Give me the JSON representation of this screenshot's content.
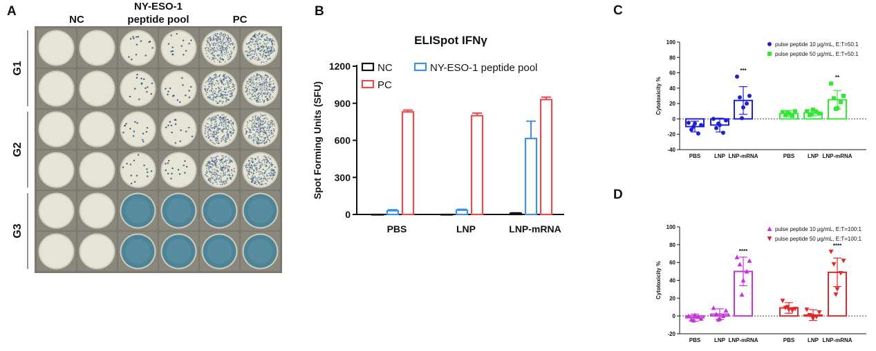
{
  "panels": {
    "a": "A",
    "b": "B",
    "c": "C",
    "d": "D"
  },
  "panel_a": {
    "columns": [
      "NC",
      "NY-ESO-1\npeptide pool",
      "PC"
    ],
    "rows": [
      "G1",
      "G2",
      "G3"
    ],
    "wells": [
      [
        "blank",
        "blank",
        "sparse",
        "sparse",
        "dense",
        "dense"
      ],
      [
        "blank",
        "blank",
        "sparse",
        "sparse",
        "dense",
        "dense"
      ],
      [
        "blank",
        "blank",
        "sparse",
        "sparse",
        "dense",
        "dense"
      ],
      [
        "blank",
        "blank",
        "sparse",
        "sparse",
        "dense",
        "dense"
      ],
      [
        "blank",
        "blank",
        "full",
        "full",
        "full",
        "full"
      ],
      [
        "blank",
        "blank",
        "full",
        "full",
        "full",
        "full"
      ]
    ],
    "colors": {
      "plate_bg": "#7c7a70",
      "well_empty": "#e6e4d4",
      "spot": "#2a4d7a",
      "well_full": "#4e8497"
    }
  },
  "chart_data": [
    {
      "id": "B",
      "type": "bar",
      "title": "ELISpot IFNγ",
      "ylabel": "Spot Forming Units (SFU)",
      "xlabel": "",
      "ylim": [
        0,
        1200
      ],
      "yticks": [
        "0",
        "300",
        "600",
        "900",
        "1200"
      ],
      "categories": [
        "PBS",
        "LNP",
        "LNP-mRNA"
      ],
      "legend": [
        "NC",
        "NY-ESO-1 peptide pool",
        "PC"
      ],
      "series": [
        {
          "name": "NC",
          "color": "#111111",
          "values": [
            0,
            0,
            10
          ],
          "errors": [
            0,
            0,
            3
          ]
        },
        {
          "name": "NY-ESO-1 peptide pool",
          "color": "#3b8fe6",
          "values": [
            30,
            35,
            615
          ],
          "errors": [
            8,
            7,
            140
          ]
        },
        {
          "name": "PC",
          "color": "#e84b4b",
          "values": [
            830,
            800,
            930
          ],
          "errors": [
            15,
            20,
            20
          ]
        }
      ]
    },
    {
      "id": "C",
      "type": "scatter",
      "ylabel": "Cytotoxicity %",
      "ylim": [
        -40,
        100
      ],
      "yticks": [
        "-40",
        "-20",
        "0",
        "20",
        "40",
        "60",
        "80",
        "100"
      ],
      "categories": [
        "PBS",
        "LNP",
        "LNP-mRNA",
        "PBS",
        "LNP",
        "LNP-mRNA"
      ],
      "legend": [
        "pulse peptide 10 μg/mL, E:T=50:1",
        "pulse peptide 50 μg/mL, E:T=50:1"
      ],
      "series": [
        {
          "name": "pulse peptide 10 μg/mL, E:T=50:1",
          "color": "#1f1fd6",
          "marker": "circle",
          "groups": [
            {
              "mean": -10,
              "sd": 7,
              "points": [
                -5,
                -8,
                -14,
                -19,
                -6,
                -10
              ]
            },
            {
              "mean": -8,
              "sd": 9,
              "points": [
                0,
                -2,
                -12,
                -18,
                -8,
                -6
              ]
            },
            {
              "mean": 24,
              "sd": 18,
              "points": [
                55,
                30,
                28,
                20,
                15,
                1
              ],
              "sig": "***"
            }
          ]
        },
        {
          "name": "pulse peptide 50 μg/mL, E:T=50:1",
          "color": "#33e833",
          "marker": "square",
          "groups": [
            {
              "mean": 7,
              "sd": 4,
              "points": [
                9,
                10,
                5,
                4,
                7,
                8
              ]
            },
            {
              "mean": 8,
              "sd": 4,
              "points": [
                10,
                7,
                5,
                9,
                12,
                6
              ]
            },
            {
              "mean": 25,
              "sd": 12,
              "points": [
                46,
                30,
                27,
                22,
                14,
                13
              ],
              "sig": "**"
            }
          ]
        }
      ]
    },
    {
      "id": "D",
      "type": "scatter",
      "ylabel": "Cytotoxicity %",
      "ylim": [
        -20,
        100
      ],
      "yticks": [
        "-20",
        "0",
        "20",
        "40",
        "60",
        "80",
        "100"
      ],
      "categories": [
        "PBS",
        "LNP",
        "LNP-mRNA",
        "PBS",
        "LNP",
        "LNP-mRNA"
      ],
      "legend": [
        "pulse peptide 10 μg/mL, E:T=100:1",
        "pulse peptide 50 μg/mL, E:T=100:1"
      ],
      "series": [
        {
          "name": "pulse peptide 10 μg/mL, E:T=100:1",
          "color": "#c334d8",
          "marker": "triangle-up",
          "groups": [
            {
              "mean": -2,
              "sd": 4,
              "points": [
                0,
                -3,
                -4,
                -1,
                1,
                -5
              ]
            },
            {
              "mean": 2,
              "sd": 6,
              "points": [
                9,
                6,
                2,
                0,
                -3,
                -4
              ]
            },
            {
              "mean": 50,
              "sd": 16,
              "points": [
                66,
                62,
                58,
                50,
                40,
                24
              ],
              "sig": "****"
            }
          ]
        },
        {
          "name": "pulse peptide 50 μg/mL, E:T=100:1",
          "color": "#e02828",
          "marker": "triangle-down",
          "groups": [
            {
              "mean": 9,
              "sd": 6,
              "points": [
                17,
                8,
                9,
                6,
                7,
                10
              ]
            },
            {
              "mean": 1,
              "sd": 6,
              "points": [
                7,
                4,
                1,
                -1,
                -3,
                0
              ]
            },
            {
              "mean": 49,
              "sd": 16,
              "points": [
                72,
                62,
                58,
                48,
                30,
                24
              ],
              "sig": "****"
            }
          ]
        }
      ]
    }
  ]
}
